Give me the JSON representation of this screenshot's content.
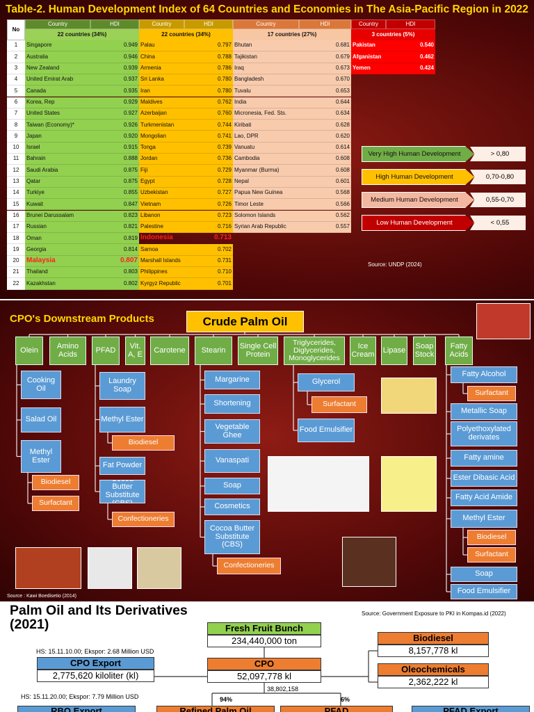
{
  "hdi": {
    "title": "Table-2. Human Development Index of 64 Countries and Economies in The Asia-Pacific Region in 2022",
    "no_header": "No",
    "numbers": [
      1,
      2,
      3,
      4,
      5,
      6,
      7,
      8,
      9,
      10,
      11,
      12,
      13,
      14,
      15,
      16,
      17,
      18,
      19,
      20,
      21,
      22
    ],
    "groups": [
      {
        "country_header": "Country",
        "hdi_header": "HDI",
        "summary": "22 countries (34%)",
        "rows": [
          [
            "Singapore",
            "0.949"
          ],
          [
            "Australia",
            "0.946"
          ],
          [
            "New Zealand",
            "0.939"
          ],
          [
            "United Emirat Arab",
            "0.937"
          ],
          [
            "Canada",
            "0.935"
          ],
          [
            "Korea, Rep",
            "0.929"
          ],
          [
            "United States",
            "0.927"
          ],
          [
            "Taiwan (Economy)*",
            "0.926"
          ],
          [
            "Japan",
            "0.920"
          ],
          [
            "Israel",
            "0.915"
          ],
          [
            "Bahrain",
            "0.888"
          ],
          [
            "Saudi Arabia",
            "0.875"
          ],
          [
            "Qatar",
            "0.875"
          ],
          [
            "Turkiye",
            "0.855"
          ],
          [
            "Kuwait",
            "0.847"
          ],
          [
            "Brunei Darussalam",
            "0.823"
          ],
          [
            "Russian",
            "0.821"
          ],
          [
            "Oman",
            "0.819"
          ],
          [
            "Georgia",
            "0.814"
          ],
          [
            "Malaysia",
            "0.807"
          ],
          [
            "Thailand",
            "0.803"
          ],
          [
            "Kazakhstan",
            "0.802"
          ]
        ]
      },
      {
        "country_header": "Country",
        "hdi_header": "HDI",
        "summary": "22 countries (34%)",
        "rows": [
          [
            "Palau",
            "0.797"
          ],
          [
            "China",
            "0.788"
          ],
          [
            "Armenia",
            "0.786"
          ],
          [
            "Sri Lanka",
            "0.780"
          ],
          [
            "Iran",
            "0.780"
          ],
          [
            "Maldives",
            "0.762"
          ],
          [
            "Azerbaijan",
            "0.760"
          ],
          [
            "Turkmenistan",
            "0.744"
          ],
          [
            "Mongolian",
            "0.741"
          ],
          [
            "Tonga",
            "0.739"
          ],
          [
            "Jordan",
            "0.736"
          ],
          [
            "Fiji",
            "0.729"
          ],
          [
            "Egypt",
            "0.728"
          ],
          [
            "Uzbekistan",
            "0.727"
          ],
          [
            "Vietnam",
            "0.726"
          ],
          [
            "Libanon",
            "0.723"
          ],
          [
            "Palestine",
            "0.716"
          ],
          [
            "Indonesia",
            "0.713"
          ],
          [
            "Samoa",
            "0.702"
          ],
          [
            "Marshall Islands",
            "0.731"
          ],
          [
            "Philippines",
            "0.710"
          ],
          [
            "Kyrgyz Republic",
            "0.701"
          ]
        ]
      },
      {
        "country_header": "Country",
        "hdi_header": "HDI",
        "summary": "17 countries (27%)",
        "rows": [
          [
            "Bhutan",
            "0.681"
          ],
          [
            "Tajikistan",
            "0.679"
          ],
          [
            "Iraq",
            "0.673"
          ],
          [
            "Bangladesh",
            "0.670"
          ],
          [
            "Tuvalu",
            "0.653"
          ],
          [
            "India",
            "0.644"
          ],
          [
            "Micronesia, Fed. Sts.",
            "0.634"
          ],
          [
            "Kiribati",
            "0.628"
          ],
          [
            "Lao, DPR",
            "0.620"
          ],
          [
            "Vanuatu",
            "0.614"
          ],
          [
            "Cambodia",
            "0.608"
          ],
          [
            "Myanmar (Burma)",
            "0.608"
          ],
          [
            "Nepal",
            "0.601"
          ],
          [
            "Papua New Guinea",
            "0.568"
          ],
          [
            "Timor Leste",
            "0.566"
          ],
          [
            "Solomon Islands",
            "0.562"
          ],
          [
            "Syrian Arab Republic",
            "0.557"
          ]
        ]
      },
      {
        "country_header": "Country",
        "hdi_header": "HDI",
        "summary": "3 countries (5%)",
        "rows": [
          [
            "Pakistan",
            "0.540"
          ],
          [
            "Afganistan",
            "0.462"
          ],
          [
            "Yemen",
            "0.424"
          ]
        ]
      }
    ],
    "legend": [
      {
        "label": "Very High Human Development",
        "range": "> 0,80"
      },
      {
        "label": "High Human Development",
        "range": "0,70-0,80"
      },
      {
        "label": "Medium Human Development",
        "range": "0,55-0,70"
      },
      {
        "label": "Low Human Development",
        "range": "< 0,55"
      }
    ],
    "source": "Source: UNDP (2024)"
  },
  "downstream": {
    "title": "CPO's Downstream Products",
    "root": "Crude Palm Oil",
    "products": [
      {
        "label": "Olein",
        "children": [
          {
            "label": "Cooking Oil"
          },
          {
            "label": "Salad Oil"
          },
          {
            "label": "Methyl Ester",
            "children": [
              {
                "label": "Biodiesel"
              },
              {
                "label": "Surfactant"
              }
            ]
          }
        ]
      },
      {
        "label": "Amino Acids"
      },
      {
        "label": "PFAD",
        "children": [
          {
            "label": "Laundry Soap"
          },
          {
            "label": "Methyl Ester",
            "children": [
              {
                "label": "Biodiesel"
              }
            ]
          },
          {
            "label": "Fat Powder"
          },
          {
            "label": "Cocoa Butter Substitute (CBS)",
            "children": [
              {
                "label": "Confectioneries"
              }
            ]
          }
        ]
      },
      {
        "label": "Vit. A, E"
      },
      {
        "label": "Carotene"
      },
      {
        "label": "Stearin",
        "children": [
          {
            "label": "Margarine"
          },
          {
            "label": "Shortening"
          },
          {
            "label": "Vegetable Ghee"
          },
          {
            "label": "Vanaspati"
          },
          {
            "label": "Soap"
          },
          {
            "label": "Cosmetics"
          },
          {
            "label": "Cocoa Butter Substitute (CBS)",
            "children": [
              {
                "label": "Confectioneries"
              }
            ]
          }
        ]
      },
      {
        "label": "Single Cell Protein"
      },
      {
        "label": "Triglycerides, Diglycerides, Monoglycerides",
        "children": [
          {
            "label": "Glycerol",
            "children": [
              {
                "label": "Surfactant"
              }
            ]
          },
          {
            "label": "Food Emulsifier"
          }
        ]
      },
      {
        "label": "Ice Cream"
      },
      {
        "label": "Lipase"
      },
      {
        "label": "Soap Stock"
      },
      {
        "label": "Fatty Acids",
        "children": [
          {
            "label": "Fatty Alcohol",
            "children": [
              {
                "label": "Surfactant"
              }
            ]
          },
          {
            "label": "Metallic Soap"
          },
          {
            "label": "Polyethoxylated derivates"
          },
          {
            "label": "Fatty amine"
          },
          {
            "label": "Ester Dibasic Acid"
          },
          {
            "label": "Fatty Acid Amide"
          },
          {
            "label": "Methyl Ester",
            "children": [
              {
                "label": "Biodiesel"
              },
              {
                "label": "Surfactant"
              }
            ]
          },
          {
            "label": "Soap"
          },
          {
            "label": "Food Emulsifier"
          }
        ]
      }
    ],
    "source": "Source : Kawi Boedisetio (2014)"
  },
  "derivatives": {
    "title": "Palm Oil and Its Derivatives (2021)",
    "source": "Source: Government Exposure to PKI in Kompas.id (2022)",
    "ffb": {
      "label": "Fresh Fruit Bunch",
      "value": "234,440,000 ton"
    },
    "cpo": {
      "label": "CPO",
      "value": "52,097,778 kl"
    },
    "cpo_export": {
      "label": "CPO Export",
      "value": "2,775,620 kiloliter (kl)",
      "hs": "HS: 15.11.10.00; Ekspor: 2.68 Million USD"
    },
    "biodiesel": {
      "label": "Biodiesel",
      "value": "8,157,778 kl"
    },
    "oleochemicals": {
      "label": "Oleochemicals",
      "value": "2,362,222 kl"
    },
    "flow": "38,802,158",
    "share_refined": "94%",
    "share_pfad": "6%",
    "rbo_hs": "HS: 15.11.20.00; Ekspor: 7.79 Million USD",
    "bottom": [
      "RBO Export",
      "Refined Palm Oil",
      "PFAD",
      "PFAD Export"
    ]
  }
}
